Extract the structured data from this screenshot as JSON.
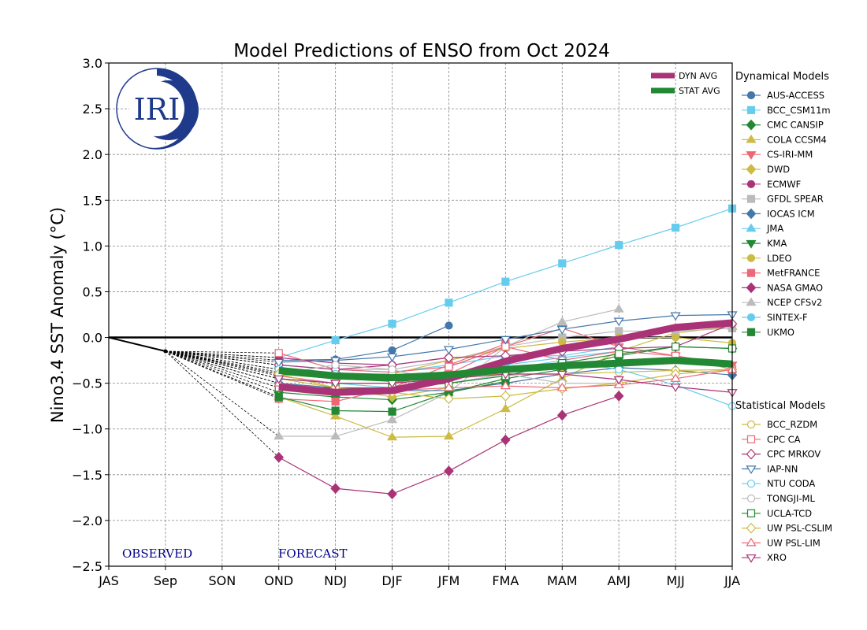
{
  "chart_data": {
    "type": "line",
    "title": "Model Predictions of ENSO from Oct 2024",
    "xlabel": "",
    "ylabel": "Nino3.4 SST Anomaly (°C)",
    "ylim": [
      -2.5,
      3.0
    ],
    "yticks": [
      "3.0",
      "2.5",
      "2.0",
      "1.5",
      "1.0",
      "0.5",
      "0.0",
      "−0.5",
      "−1.0",
      "−1.5",
      "−2.0",
      "−2.5"
    ],
    "ytick_values": [
      3.0,
      2.5,
      2.0,
      1.5,
      1.0,
      0.5,
      0.0,
      -0.5,
      -1.0,
      -1.5,
      -2.0,
      -2.5
    ],
    "categories": [
      "JAS",
      "Sep",
      "SON",
      "OND",
      "NDJ",
      "DJF",
      "JFM",
      "FMA",
      "MAM",
      "AMJ",
      "MJJ",
      "JJA"
    ],
    "grid": true,
    "annotations": {
      "observed": "OBSERVED",
      "forecast": "FORECAST",
      "logo": "IRI"
    },
    "observed": {
      "x": [
        "JAS",
        "Sep"
      ],
      "values": [
        0.0,
        -0.15
      ]
    },
    "forecast_x": [
      "OND",
      "NDJ",
      "DJF",
      "JFM",
      "FMA",
      "MAM",
      "AMJ",
      "MJJ",
      "JJA"
    ],
    "averages": [
      {
        "name": "DYN AVG",
        "color": "#aa3377",
        "values": [
          -0.54,
          -0.6,
          -0.58,
          -0.45,
          -0.26,
          -0.12,
          -0.02,
          0.11,
          0.16
        ]
      },
      {
        "name": "STAT AVG",
        "color": "#228833",
        "values": [
          -0.36,
          -0.42,
          -0.44,
          -0.41,
          -0.35,
          -0.31,
          -0.28,
          -0.25,
          -0.29
        ]
      }
    ],
    "dynamical_title": "Dynamical Models",
    "statistical_title": "Statistical Models",
    "dynamical": [
      {
        "name": "AUS-ACCESS",
        "color": "#4477aa",
        "marker": "circle",
        "values": [
          -0.25,
          -0.24,
          -0.14,
          0.13
        ]
      },
      {
        "name": "BCC_CSM11m",
        "color": "#66ccee",
        "marker": "square",
        "values": [
          -0.22,
          -0.03,
          0.15,
          0.38,
          0.61,
          0.81,
          1.01,
          1.2,
          1.41
        ]
      },
      {
        "name": "CMC CANSIP",
        "color": "#228833",
        "marker": "diamond",
        "values": [
          -0.6,
          -0.65,
          -0.68,
          -0.6,
          -0.45,
          -0.35,
          -0.2,
          -0.1,
          -0.12
        ]
      },
      {
        "name": "COLA CCSM4",
        "color": "#ccbb44",
        "marker": "triangle-up",
        "values": [
          -0.65,
          -0.86,
          -1.09,
          -1.08,
          -0.78,
          -0.45,
          -0.15,
          0.05,
          0.12
        ]
      },
      {
        "name": "CS-IRI-MM",
        "color": "#ee6677",
        "marker": "triangle-down",
        "values": [
          -0.42,
          -0.5,
          -0.5,
          -0.4,
          -0.1,
          0.1,
          -0.1,
          -0.2,
          -0.3
        ]
      },
      {
        "name": "DWD",
        "color": "#ccbb44",
        "marker": "diamond",
        "values": [
          -0.45,
          -0.55,
          -0.65,
          -0.55
        ]
      },
      {
        "name": "ECMWF",
        "color": "#aa3377",
        "marker": "circle",
        "values": [
          -0.22,
          -0.28,
          -0.3,
          -0.22
        ]
      },
      {
        "name": "GFDL SPEAR",
        "color": "#bbbbbb",
        "marker": "square",
        "values": [
          -0.3,
          -0.35,
          -0.35,
          -0.25,
          -0.1,
          0.0,
          0.07,
          0.07,
          0.1
        ]
      },
      {
        "name": "IOCAS ICM",
        "color": "#4477aa",
        "marker": "diamond",
        "values": [
          -0.5,
          -0.55,
          -0.58,
          -0.58,
          -0.5,
          -0.4,
          -0.33,
          -0.36,
          -0.41
        ]
      },
      {
        "name": "JMA",
        "color": "#66ccee",
        "marker": "triangle-up",
        "values": [
          -0.3,
          -0.35,
          -0.38,
          -0.3,
          -0.2,
          -0.2,
          -0.1
        ]
      },
      {
        "name": "KMA",
        "color": "#228833",
        "marker": "triangle-down",
        "values": [
          -0.4,
          -0.45,
          -0.48,
          -0.45,
          -0.35,
          -0.3,
          -0.25
        ]
      },
      {
        "name": "LDEO",
        "color": "#ccbb44",
        "marker": "circle",
        "values": [
          -0.38,
          -0.4,
          -0.4,
          -0.25,
          -0.12,
          -0.05,
          0.0,
          0.0,
          -0.06
        ]
      },
      {
        "name": "MetFRANCE",
        "color": "#ee6677",
        "marker": "square",
        "values": [
          -0.67,
          -0.7,
          -0.55,
          -0.3,
          -0.07
        ]
      },
      {
        "name": "NASA GMAO",
        "color": "#aa3377",
        "marker": "diamond",
        "values": [
          -1.31,
          -1.65,
          -1.71,
          -1.46,
          -1.12,
          -0.85,
          -0.64
        ]
      },
      {
        "name": "NCEP CFSv2",
        "color": "#bbbbbb",
        "marker": "triangle-up",
        "values": [
          -1.08,
          -1.08,
          -0.9,
          -0.6,
          -0.1,
          0.17,
          0.31
        ]
      },
      {
        "name": "SINTEX-F",
        "color": "#66ccee",
        "marker": "circle",
        "values": [
          -0.45,
          -0.5,
          -0.55,
          -0.45,
          -0.3,
          -0.22,
          -0.15
        ]
      },
      {
        "name": "UKMO",
        "color": "#228833",
        "marker": "square",
        "values": [
          -0.65,
          -0.8,
          -0.81,
          -0.6,
          -0.48
        ]
      }
    ],
    "statistical": [
      {
        "name": "BCC_RZDM",
        "color": "#ccbb44",
        "marker": "circle",
        "values": [
          -0.35,
          -0.45,
          -0.45,
          -0.42,
          -0.4,
          -0.4,
          -0.38,
          -0.36,
          -0.35
        ]
      },
      {
        "name": "CPC CA",
        "color": "#ee6677",
        "marker": "square",
        "values": [
          -0.17,
          -0.35,
          -0.38,
          -0.32,
          -0.1,
          -0.25,
          -0.15,
          -0.2,
          -0.35
        ]
      },
      {
        "name": "CPC MRKOV",
        "color": "#aa3377",
        "marker": "diamond",
        "values": [
          -0.3,
          -0.35,
          -0.3,
          -0.22,
          -0.2,
          -0.15,
          -0.12,
          -0.1,
          0.15
        ]
      },
      {
        "name": "IAP-NN",
        "color": "#4477aa",
        "marker": "triangle-down",
        "values": [
          -0.27,
          -0.25,
          -0.21,
          -0.13,
          -0.02,
          0.09,
          0.18,
          0.24,
          0.25
        ]
      },
      {
        "name": "NTU CODA",
        "color": "#66ccee",
        "marker": "circle",
        "values": [
          -0.35,
          -0.4,
          -0.45,
          -0.45,
          -0.35,
          -0.25,
          -0.35,
          -0.52,
          -0.75
        ]
      },
      {
        "name": "TONGJI-ML",
        "color": "#bbbbbb",
        "marker": "circle",
        "values": [
          -0.4,
          -0.3,
          -0.35,
          -0.5,
          -0.4,
          -0.5,
          -0.5
        ]
      },
      {
        "name": "UCLA-TCD",
        "color": "#228833",
        "marker": "square",
        "values": [
          -0.55,
          -0.55,
          -0.55,
          -0.5,
          -0.42,
          -0.28,
          -0.18,
          -0.1,
          -0.12
        ]
      },
      {
        "name": "UW PSL-CSLIM",
        "color": "#ccbb44",
        "marker": "diamond",
        "values": [
          -0.4,
          -0.55,
          -0.6,
          -0.67,
          -0.64,
          -0.56,
          -0.5,
          -0.4,
          -0.35
        ]
      },
      {
        "name": "UW PSL-LIM",
        "color": "#ee6677",
        "marker": "triangle-up",
        "values": [
          -0.5,
          -0.6,
          -0.58,
          -0.55,
          -0.53,
          -0.55,
          -0.52,
          -0.45,
          -0.35
        ]
      },
      {
        "name": "XRO",
        "color": "#aa3377",
        "marker": "triangle-down",
        "values": [
          -0.45,
          -0.5,
          -0.5,
          -0.45,
          -0.4,
          -0.4,
          -0.46,
          -0.54,
          -0.6
        ]
      }
    ]
  }
}
